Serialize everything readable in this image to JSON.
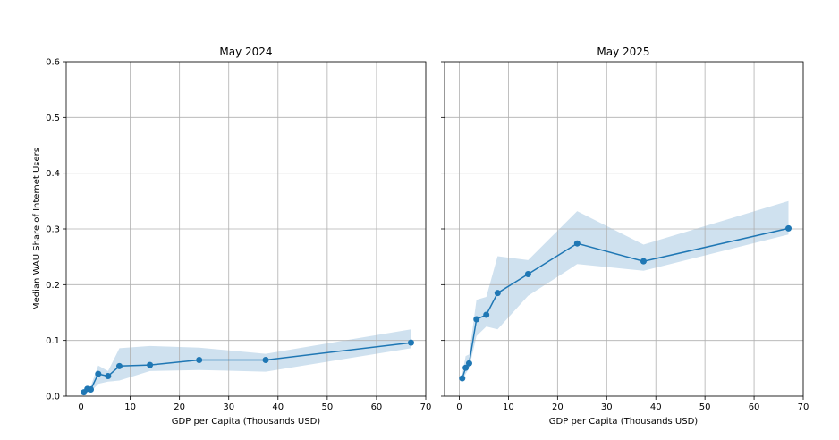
{
  "chart_data": [
    {
      "type": "line",
      "title": "May 2024",
      "xlabel": "GDP per Capita (Thousands USD)",
      "ylabel": "Median WAU Share of Internet Users",
      "xlim": [
        -3,
        70
      ],
      "ylim": [
        0,
        0.6
      ],
      "xticks": [
        0,
        10,
        20,
        30,
        40,
        50,
        60,
        70
      ],
      "yticks": [
        0.0,
        0.1,
        0.2,
        0.3,
        0.4,
        0.5,
        0.6
      ],
      "xtick_labels": [
        "0",
        "10",
        "20",
        "30",
        "40",
        "50",
        "60",
        "70"
      ],
      "ytick_labels": [
        "0.0",
        "0.1",
        "0.2",
        "0.3",
        "0.4",
        "0.5",
        "0.6"
      ],
      "grid": true,
      "color": "#1f77b4",
      "band_color": "#cfe1ef",
      "series": [
        {
          "x": [
            0.6,
            1.3,
            2.0,
            3.5,
            5.5,
            7.8,
            14.0,
            24.0,
            37.5,
            67.0
          ],
          "y": [
            0.007,
            0.013,
            0.012,
            0.04,
            0.036,
            0.054,
            0.056,
            0.065,
            0.065,
            0.096
          ],
          "lower": [
            0.003,
            0.008,
            0.008,
            0.022,
            0.026,
            0.028,
            0.045,
            0.047,
            0.044,
            0.086
          ],
          "upper": [
            0.012,
            0.018,
            0.018,
            0.055,
            0.045,
            0.086,
            0.09,
            0.087,
            0.076,
            0.12
          ]
        }
      ]
    },
    {
      "type": "line",
      "title": "May 2025",
      "xlabel": "GDP per Capita (Thousands USD)",
      "ylabel": "",
      "xlim": [
        -3,
        70
      ],
      "ylim": [
        0,
        0.6
      ],
      "xticks": [
        0,
        10,
        20,
        30,
        40,
        50,
        60,
        70
      ],
      "yticks": [
        0.0,
        0.1,
        0.2,
        0.3,
        0.4,
        0.5,
        0.6
      ],
      "xtick_labels": [
        "0",
        "10",
        "20",
        "30",
        "40",
        "50",
        "60",
        "70"
      ],
      "ytick_labels": [],
      "grid": true,
      "color": "#1f77b4",
      "band_color": "#cfe1ef",
      "series": [
        {
          "x": [
            0.6,
            1.3,
            2.0,
            3.5,
            5.5,
            7.8,
            14.0,
            24.0,
            37.5,
            67.0
          ],
          "y": [
            0.032,
            0.051,
            0.059,
            0.138,
            0.146,
            0.185,
            0.219,
            0.274,
            0.242,
            0.301
          ],
          "lower": [
            0.026,
            0.04,
            0.05,
            0.108,
            0.125,
            0.12,
            0.18,
            0.237,
            0.225,
            0.29
          ],
          "upper": [
            0.04,
            0.072,
            0.075,
            0.173,
            0.178,
            0.251,
            0.244,
            0.332,
            0.272,
            0.35
          ]
        }
      ]
    }
  ]
}
